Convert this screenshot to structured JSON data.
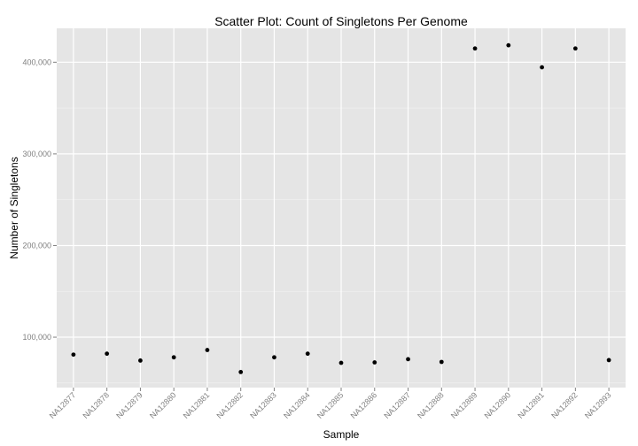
{
  "chart_data": {
    "type": "scatter",
    "title": "Scatter Plot: Count of Singletons Per Genome",
    "xlabel": "Sample",
    "ylabel": "Number of Singletons",
    "categories": [
      "NA12877",
      "NA12878",
      "NA12879",
      "NA12880",
      "NA12881",
      "NA12882",
      "NA12883",
      "NA12884",
      "NA12885",
      "NA12886",
      "NA12887",
      "NA12888",
      "NA12889",
      "NA12890",
      "NA12891",
      "NA12892",
      "NA12893"
    ],
    "values": [
      81000,
      82000,
      74500,
      78000,
      86000,
      62000,
      78000,
      82000,
      72000,
      72500,
      76000,
      73000,
      415000,
      418500,
      394500,
      415000,
      75000
    ],
    "yticks": [
      100000,
      200000,
      300000,
      400000
    ],
    "ytick_labels": [
      "100,000",
      "200,000",
      "300,000",
      "400,000"
    ],
    "ylim": [
      45000,
      437000
    ],
    "grid": true,
    "colors": {
      "panel": "#e5e5e5",
      "grid_major": "#ffffff",
      "grid_minor": "#f2f2f2",
      "point": "#000000"
    }
  }
}
